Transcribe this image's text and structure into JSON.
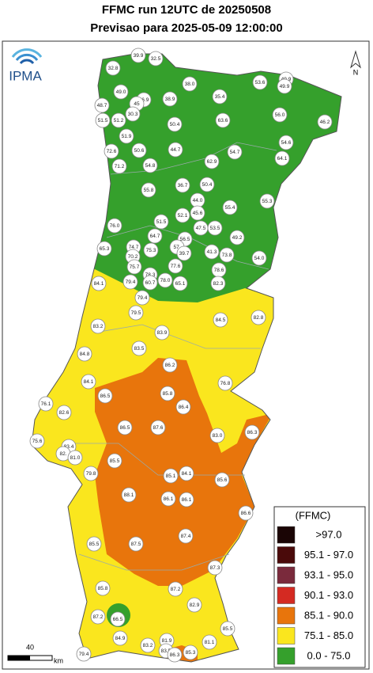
{
  "header": {
    "title": "FFMC run 12UTC de 20250508",
    "subtitle": "Previsao para 2025-05-09 12:00:00"
  },
  "logo": "IPMA",
  "north": "N",
  "stations": [
    "39.9",
    "32.5",
    "32.8",
    "49.0",
    "36.9",
    "45",
    "38.0",
    "35.4",
    "53.6",
    "49.9",
    "49.9",
    "48.7",
    "38.9",
    "30.3",
    "51.5",
    "51.2",
    "50.4",
    "63.6",
    "56.0",
    "46.2",
    "51.9",
    "54.6",
    "72.6",
    "50.6",
    "44.7",
    "54.7",
    "64.1",
    "71.2",
    "54.8",
    "62.9",
    "55.8",
    "36.7",
    "50.4",
    "44.0",
    "55.4",
    "55.3",
    "76.0",
    "51.5",
    "52.1",
    "45.6",
    "47.5",
    "53.5",
    "64.7",
    "56.5",
    "49.2",
    "65.3",
    "74.7",
    "75.3",
    "57.",
    "39.7",
    "70.2",
    "41.3",
    "73.8",
    "54.0",
    "78.6",
    "75.7",
    "77.6",
    "78.3",
    "60.7",
    "78.0",
    "65.1",
    "82.3",
    "84.1",
    "79.4",
    "79.4",
    "79.5",
    "84.5",
    "82.8",
    "83.2",
    "83.9",
    "83.5",
    "84.8",
    "86.2",
    "84.1",
    "76.8",
    "86.5",
    "85.8",
    "86.4",
    "76.1",
    "82.6",
    "86.5",
    "87.6",
    "83.0",
    "86.3",
    "75.6",
    "83.4",
    "82.",
    "81.0",
    "85.5",
    "79.8",
    "85.1",
    "84.1",
    "85.6",
    "88.1",
    "86.1",
    "86.1",
    "86.6",
    "87.4",
    "85.5",
    "87.5",
    "87.3",
    "85.8",
    "87.2",
    "87.2",
    "66.5",
    "82.9",
    "85.5",
    "84.9",
    "83.2",
    "81.9",
    "83.5",
    "81.1",
    "86.3",
    "85.3",
    "79.4"
  ],
  "legend": {
    "title": "(FFMC)",
    "items": [
      {
        "label": ">97.0",
        "color": "#1a0505"
      },
      {
        "label": "95.1 - 97.0",
        "color": "#4a0a0a"
      },
      {
        "label": "93.1 - 95.0",
        "color": "#7a2a3c"
      },
      {
        "label": "90.1 - 93.0",
        "color": "#d42a22"
      },
      {
        "label": "85.1 - 90.0",
        "color": "#e8750c"
      },
      {
        "label": "75.1 - 85.0",
        "color": "#fae61e"
      },
      {
        "label": "0.0 - 75.0",
        "color": "#35a02c"
      }
    ]
  },
  "scale": {
    "label": "40",
    "unit": "km"
  }
}
